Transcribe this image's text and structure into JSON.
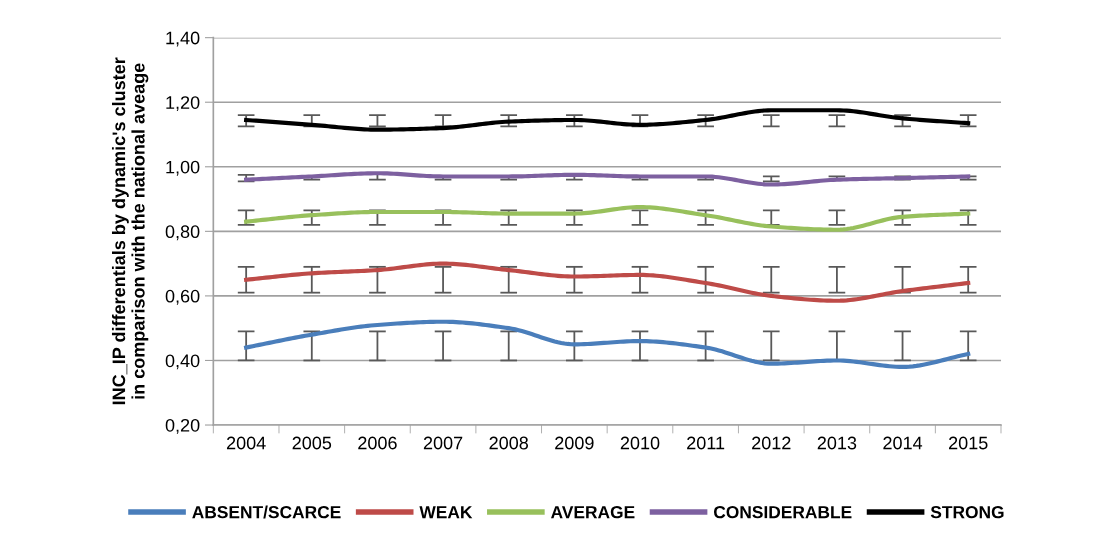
{
  "chart_data": {
    "type": "line",
    "ylabel": "INC_IP differentials by dynamic's cluster\nin comparison with the national aveage",
    "categories": [
      "2004",
      "2005",
      "2006",
      "2007",
      "2008",
      "2009",
      "2010",
      "2011",
      "2012",
      "2013",
      "2014",
      "2015"
    ],
    "ylim": [
      0.2,
      1.4
    ],
    "yticks": [
      {
        "value": 0.2,
        "label": "0,20"
      },
      {
        "value": 0.4,
        "label": "0,40"
      },
      {
        "value": 0.6,
        "label": "0,60"
      },
      {
        "value": 0.8,
        "label": "0,80"
      },
      {
        "value": 1.0,
        "label": "1,00"
      },
      {
        "value": 1.2,
        "label": "1,20"
      },
      {
        "value": 1.4,
        "label": "1,40"
      }
    ],
    "grid": "y",
    "legend": "bottom",
    "marker": "none",
    "line_style": "solid",
    "series": [
      {
        "name": "ABSENT/SCARCE",
        "color": "#4a7ebb",
        "values": [
          0.44,
          0.48,
          0.51,
          0.52,
          0.5,
          0.45,
          0.46,
          0.44,
          0.39,
          0.4,
          0.38,
          0.42
        ],
        "errors": [
          [
            0.4,
            0.49
          ],
          [
            0.4,
            0.49
          ],
          [
            0.4,
            0.49
          ],
          [
            0.4,
            0.49
          ],
          [
            0.4,
            0.49
          ],
          [
            0.4,
            0.49
          ],
          [
            0.4,
            0.49
          ],
          [
            0.4,
            0.49
          ],
          [
            0.4,
            0.49
          ],
          [
            0.4,
            0.49
          ],
          [
            0.4,
            0.49
          ],
          [
            0.4,
            0.49
          ]
        ]
      },
      {
        "name": "WEAK",
        "color": "#be4b48",
        "values": [
          0.65,
          0.67,
          0.68,
          0.7,
          0.68,
          0.66,
          0.665,
          0.64,
          0.6,
          0.585,
          0.615,
          0.64
        ],
        "errors": [
          [
            0.61,
            0.69
          ],
          [
            0.61,
            0.69
          ],
          [
            0.61,
            0.69
          ],
          [
            0.61,
            0.69
          ],
          [
            0.61,
            0.69
          ],
          [
            0.61,
            0.69
          ],
          [
            0.61,
            0.69
          ],
          [
            0.61,
            0.69
          ],
          [
            0.61,
            0.69
          ],
          [
            0.61,
            0.69
          ],
          [
            0.61,
            0.69
          ],
          [
            0.61,
            0.69
          ]
        ]
      },
      {
        "name": "AVERAGE",
        "color": "#98c05c",
        "values": [
          0.83,
          0.85,
          0.86,
          0.86,
          0.855,
          0.855,
          0.875,
          0.85,
          0.815,
          0.805,
          0.845,
          0.855
        ],
        "errors": [
          [
            0.82,
            0.865
          ],
          [
            0.82,
            0.865
          ],
          [
            0.82,
            0.865
          ],
          [
            0.82,
            0.865
          ],
          [
            0.82,
            0.865
          ],
          [
            0.82,
            0.865
          ],
          [
            0.82,
            0.865
          ],
          [
            0.82,
            0.865
          ],
          [
            0.82,
            0.865
          ],
          [
            0.82,
            0.865
          ],
          [
            0.82,
            0.865
          ],
          [
            0.82,
            0.865
          ]
        ]
      },
      {
        "name": "CONSIDERABLE",
        "color": "#7d60a0",
        "values": [
          0.96,
          0.97,
          0.98,
          0.97,
          0.97,
          0.975,
          0.97,
          0.97,
          0.945,
          0.96,
          0.965,
          0.97
        ],
        "errors": [
          [
            0.955,
            0.975
          ],
          [
            0.96,
            0.97
          ],
          [
            0.96,
            0.98
          ],
          [
            0.96,
            0.97
          ],
          [
            0.96,
            0.97
          ],
          [
            0.96,
            0.975
          ],
          [
            0.96,
            0.97
          ],
          [
            0.96,
            0.97
          ],
          [
            0.955,
            0.97
          ],
          [
            0.96,
            0.97
          ],
          [
            0.96,
            0.97
          ],
          [
            0.96,
            0.97
          ]
        ]
      },
      {
        "name": "STRONG",
        "color": "#000000",
        "values": [
          1.145,
          1.13,
          1.115,
          1.12,
          1.14,
          1.145,
          1.13,
          1.145,
          1.175,
          1.175,
          1.15,
          1.135
        ],
        "errors": [
          [
            1.125,
            1.16
          ],
          [
            1.125,
            1.16
          ],
          [
            1.125,
            1.16
          ],
          [
            1.125,
            1.16
          ],
          [
            1.125,
            1.16
          ],
          [
            1.125,
            1.16
          ],
          [
            1.125,
            1.16
          ],
          [
            1.125,
            1.16
          ],
          [
            1.125,
            1.16
          ],
          [
            1.125,
            1.16
          ],
          [
            1.125,
            1.16
          ],
          [
            1.125,
            1.16
          ]
        ]
      }
    ]
  }
}
